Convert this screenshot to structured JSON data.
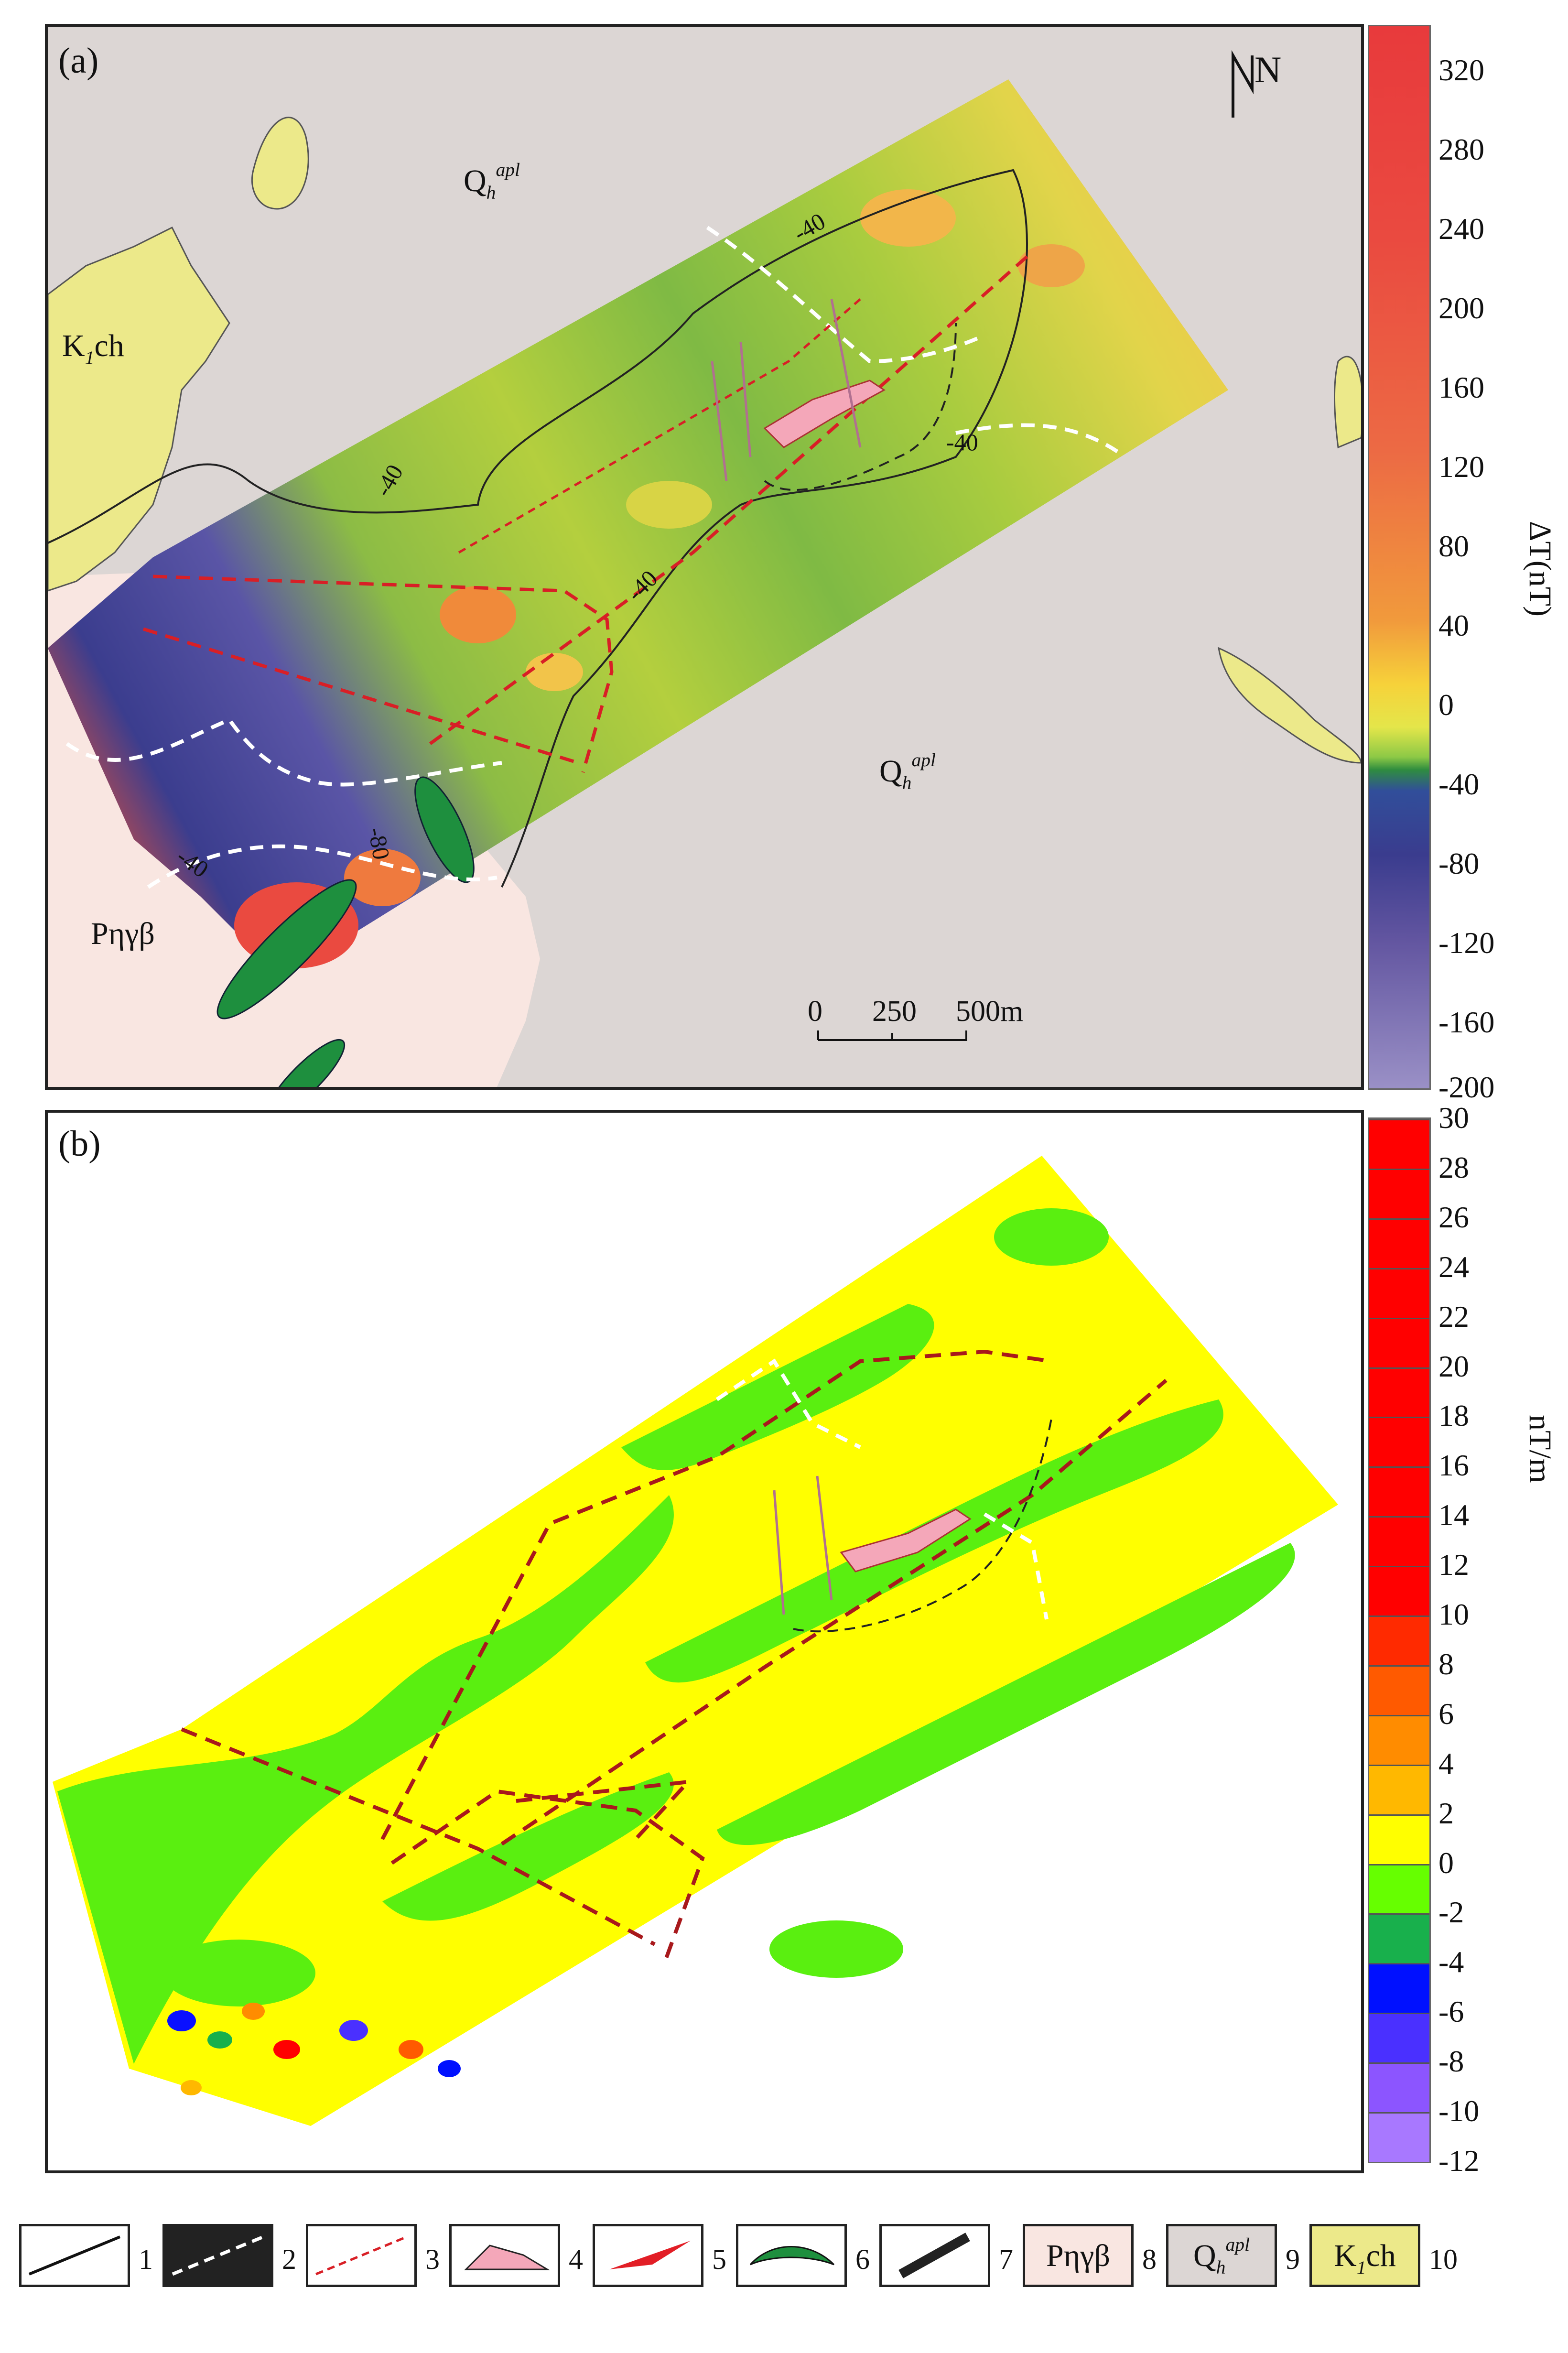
{
  "panel_a": {
    "label": "(a)",
    "north_label": "N",
    "units": [
      "Q",
      "h",
      "apl",
      "Q",
      "h",
      "apl",
      "K",
      "1",
      "ch",
      "Pηγβ"
    ],
    "contour_labels": [
      "-40",
      "-40",
      "-40",
      "-40",
      "-40",
      "-80"
    ],
    "scale_bar": {
      "t0": "0",
      "t1": "250",
      "t2": "500m"
    }
  },
  "colorbar_a": {
    "title": "ΔT(nT)",
    "ticks": [
      "320",
      "280",
      "240",
      "200",
      "160",
      "120",
      "80",
      "40",
      "0",
      "-40",
      "-80",
      "-120",
      "-160",
      "-200"
    ],
    "colors": {
      "high": "#e83a3c",
      "mid": "#e4e64a",
      "low": "#314e9a",
      "min": "#9a90c6"
    }
  },
  "panel_b": {
    "label": "(b)"
  },
  "colorbar_b": {
    "title": "nT/m",
    "ticks": [
      "30",
      "28",
      "26",
      "24",
      "22",
      "20",
      "18",
      "16",
      "14",
      "12",
      "10",
      "8",
      "6",
      "4",
      "2",
      "0",
      "-2",
      "-4",
      "-6",
      "-8",
      "-10",
      "-12"
    ],
    "segment_colors": [
      "#ff0000",
      "#ff0000",
      "#ff0000",
      "#ff0000",
      "#ff0000",
      "#ff0000",
      "#ff0000",
      "#ff0000",
      "#ff0000",
      "#ff0000",
      "#ff2a00",
      "#ff5a00",
      "#ff8c00",
      "#ffb800",
      "#ffff00",
      "#66ff00",
      "#18b04c",
      "#0010ff",
      "#4a30ff",
      "#8c55ff",
      "#a878ff"
    ]
  },
  "legend": {
    "items": [
      {
        "num": "1",
        "icon": "solid-line-icon"
      },
      {
        "num": "2",
        "icon": "white-dashed-line-icon"
      },
      {
        "num": "3",
        "icon": "red-dashed-line-icon"
      },
      {
        "num": "4",
        "icon": "pink-polygon-icon"
      },
      {
        "num": "5",
        "icon": "red-wedge-icon"
      },
      {
        "num": "6",
        "icon": "green-lens-icon"
      },
      {
        "num": "7",
        "icon": "black-bar-icon"
      },
      {
        "num": "8",
        "text": "Pηγβ"
      },
      {
        "num": "9",
        "text_main": "Q",
        "text_sub": "h",
        "text_sup": "apl"
      },
      {
        "num": "10",
        "text_main": "K",
        "text_sub": "1",
        "text_tail": "ch"
      }
    ]
  }
}
